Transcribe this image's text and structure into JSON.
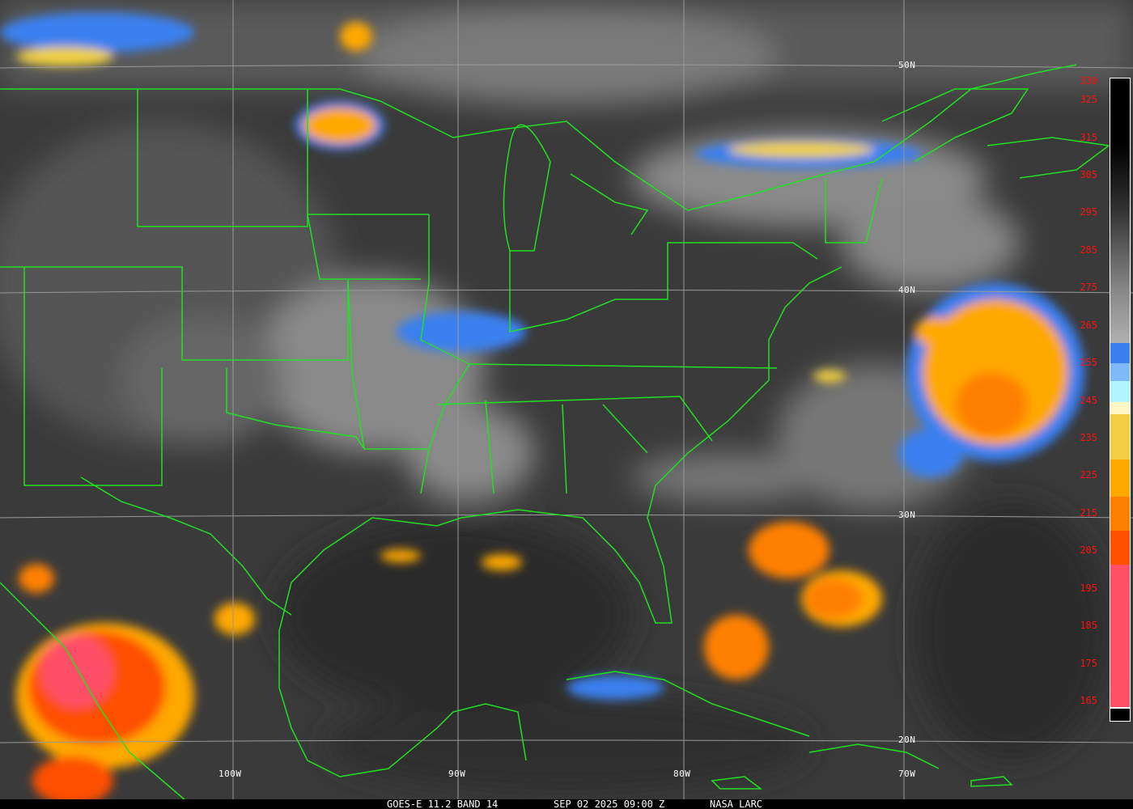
{
  "caption": {
    "satellite": "GOES-E 11.2 BAND 14",
    "datetime": "SEP 02 2025 09:00 Z",
    "source": "NASA LARC"
  },
  "latitude_labels": [
    "50N",
    "40N",
    "30N",
    "20N"
  ],
  "longitude_labels": [
    "100W",
    "90W",
    "80W",
    "70W"
  ],
  "colorbar": {
    "labels": [
      "330",
      "325",
      "315",
      "305",
      "295",
      "285",
      "275",
      "265",
      "255",
      "245",
      "235",
      "225",
      "215",
      "205",
      "195",
      "185",
      "175",
      "165"
    ],
    "colors": {
      "blue": "#3a80f0",
      "light_blue": "#80b8f8",
      "cyan": "#b4f4ff",
      "pale_yellow": "#fff8c4",
      "yellow": "#f0d040",
      "orange": "#ffa800",
      "dark_orange": "#ff8000",
      "red_orange": "#ff5000",
      "pink": "#ff5068"
    }
  },
  "overlay_colors": {
    "borders": "#22e022",
    "grid": "#9a9a9a",
    "label": "#ff1010"
  }
}
